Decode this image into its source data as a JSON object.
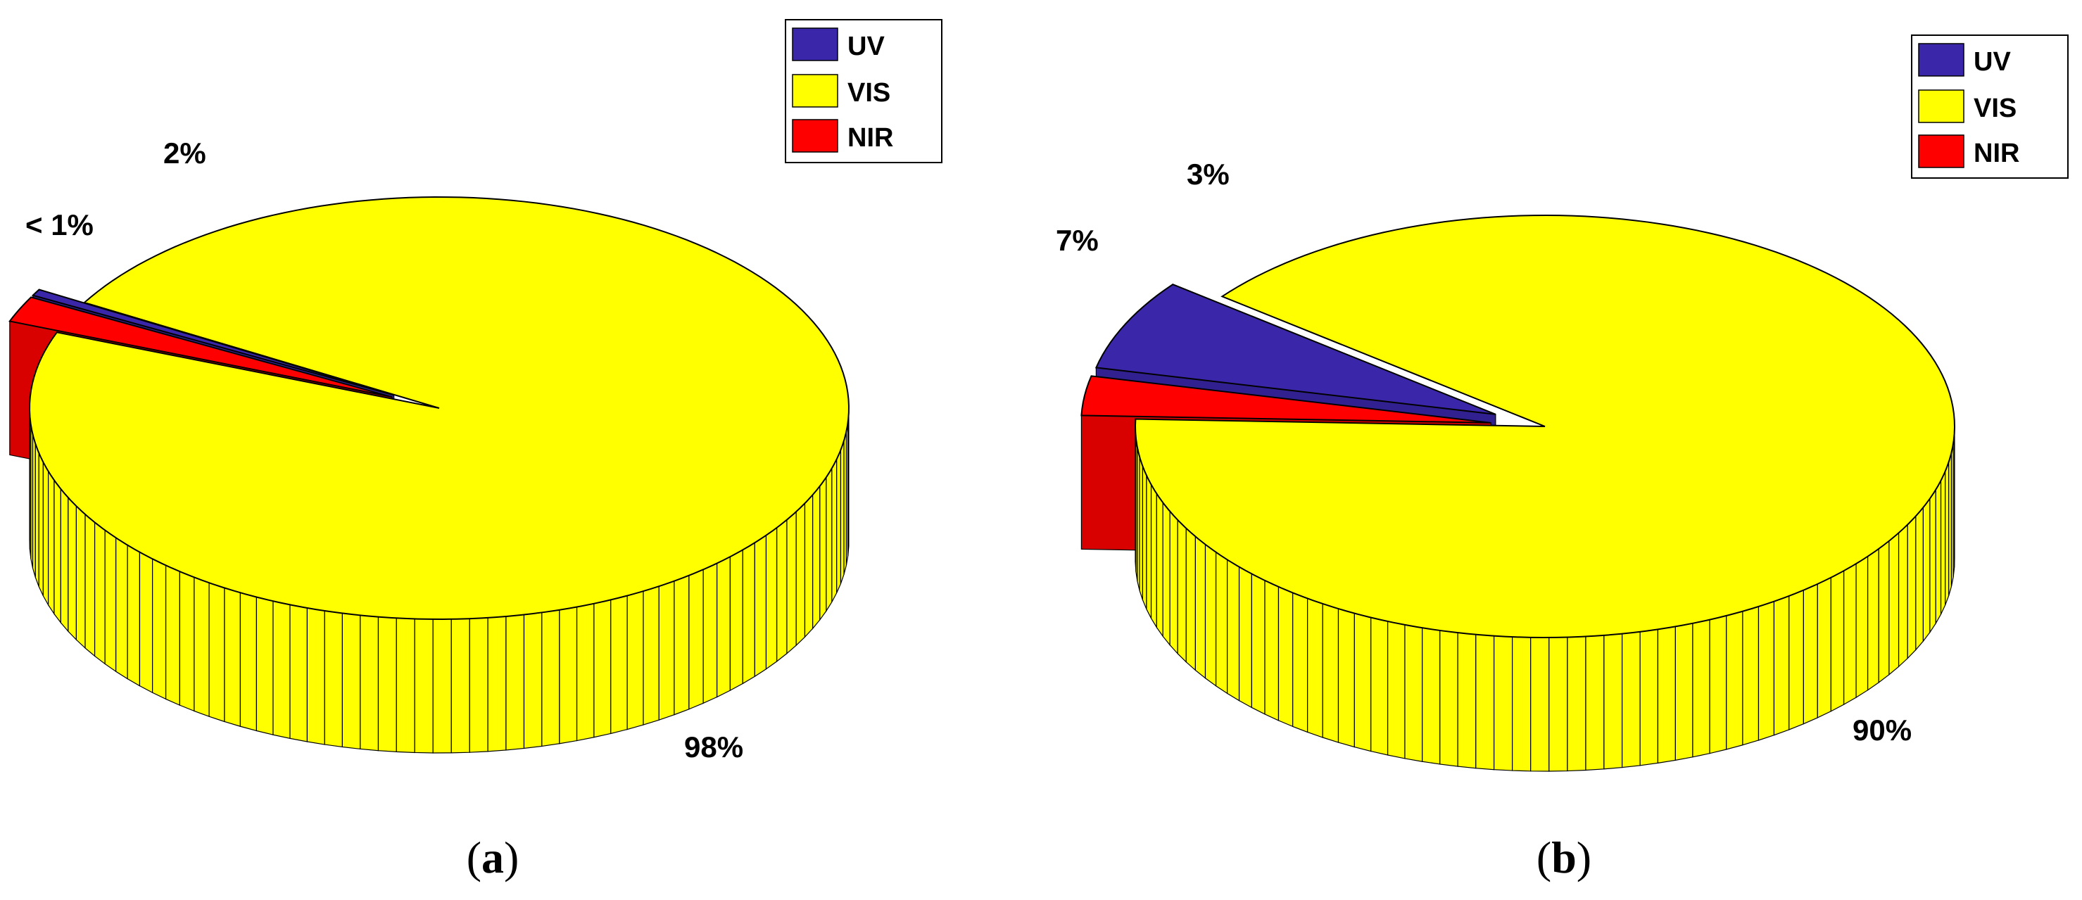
{
  "chart_data": [
    {
      "type": "pie",
      "panel_label": "(a)",
      "panel_letter": "a",
      "legend": [
        {
          "label": "UV",
          "color": "#3a26a8"
        },
        {
          "label": "VIS",
          "color": "#ffff00"
        },
        {
          "label": "NIR",
          "color": "#ff0000"
        }
      ],
      "slices": [
        {
          "label": "UV",
          "value": 0.5,
          "display": "< 1%",
          "color": "#3a26a8",
          "exploded": true
        },
        {
          "label": "NIR",
          "value": 2,
          "display": "2%",
          "color": "#ff0000",
          "exploded": true
        },
        {
          "label": "VIS",
          "value": 98,
          "display": "98%",
          "color": "#ffff00",
          "exploded": false
        }
      ],
      "legend_position": "top-right"
    },
    {
      "type": "pie",
      "panel_label": "(b)",
      "panel_letter": "b",
      "legend": [
        {
          "label": "UV",
          "color": "#3a26a8"
        },
        {
          "label": "VIS",
          "color": "#ffff00"
        },
        {
          "label": "NIR",
          "color": "#ff0000"
        }
      ],
      "slices": [
        {
          "label": "UV",
          "value": 7,
          "display": "7%",
          "color": "#3a26a8",
          "exploded": true
        },
        {
          "label": "NIR",
          "value": 3,
          "display": "3%",
          "color": "#ff0000",
          "exploded": true
        },
        {
          "label": "VIS",
          "value": 90,
          "display": "90%",
          "color": "#ffff00",
          "exploded": false
        }
      ],
      "legend_position": "top-right"
    }
  ]
}
